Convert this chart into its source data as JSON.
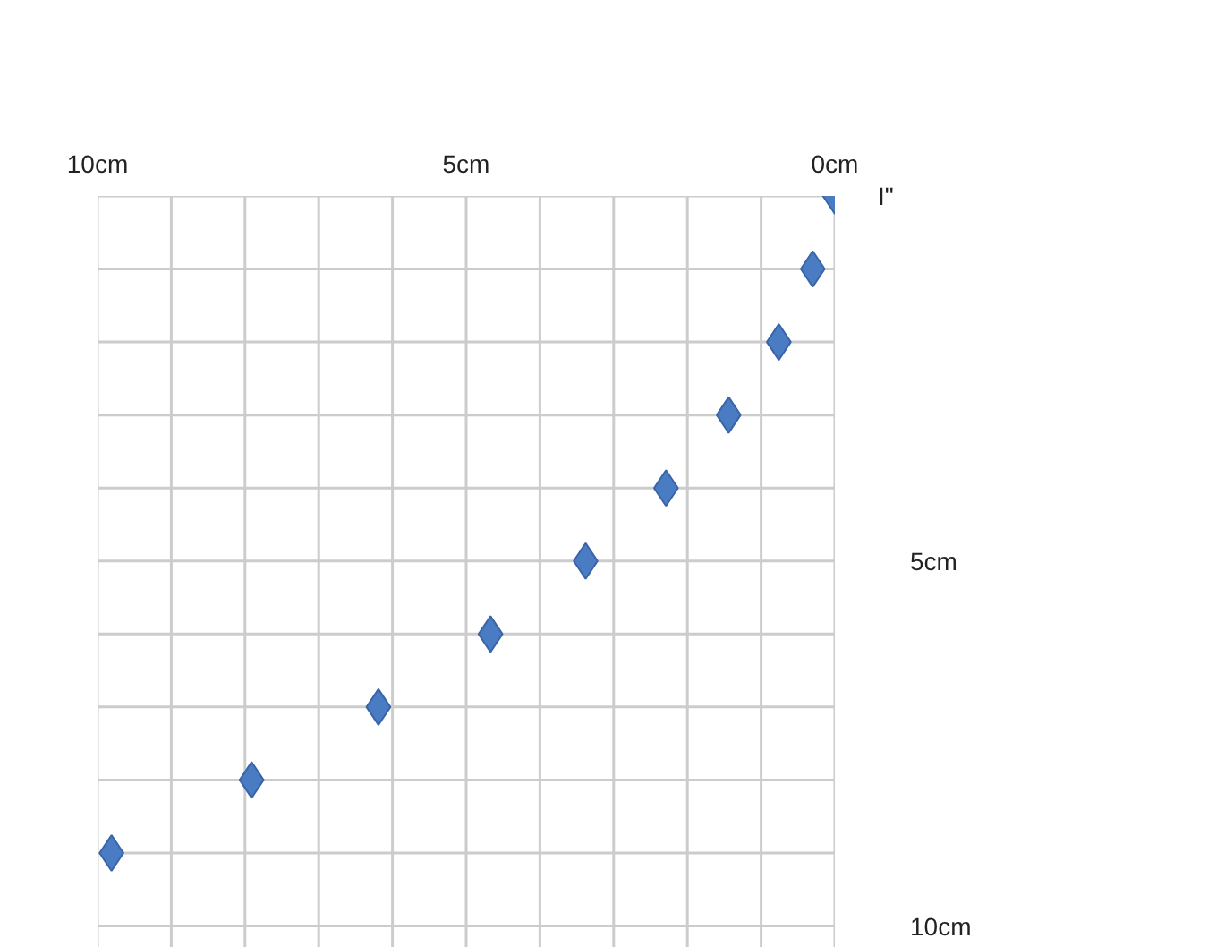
{
  "chart_data": {
    "type": "scatter",
    "x": [
      0,
      0.3,
      0.76,
      1.44,
      2.29,
      3.38,
      4.67,
      6.19,
      7.91,
      9.81
    ],
    "values": [
      0,
      1,
      2,
      3,
      4,
      5,
      6,
      7,
      8,
      9
    ],
    "color": "#4a7cc4",
    "marker": "diamond",
    "xlim": [
      10,
      0
    ],
    "ylim": [
      10.3,
      0
    ],
    "xticks": [
      {
        "value": 10,
        "label": "10cm"
      },
      {
        "value": 9,
        "label": null
      },
      {
        "value": 8,
        "label": null
      },
      {
        "value": 7,
        "label": null
      },
      {
        "value": 6,
        "label": null
      },
      {
        "value": 5,
        "label": "5cm"
      },
      {
        "value": 4,
        "label": null
      },
      {
        "value": 3,
        "label": null
      },
      {
        "value": 2,
        "label": null
      },
      {
        "value": 1,
        "label": null
      },
      {
        "value": 0,
        "label": "0cm"
      }
    ],
    "yticks": [
      {
        "value": 0,
        "label": null
      },
      {
        "value": 1,
        "label": null
      },
      {
        "value": 2,
        "label": null
      },
      {
        "value": 3,
        "label": null
      },
      {
        "value": 4,
        "label": null
      },
      {
        "value": 5,
        "label": "5cm"
      },
      {
        "value": 6,
        "label": null
      },
      {
        "value": 7,
        "label": null
      },
      {
        "value": 8,
        "label": null
      },
      {
        "value": 9,
        "label": null
      },
      {
        "value": 10,
        "label": "10cm"
      }
    ],
    "grid": true,
    "annotations": [
      "I\""
    ]
  }
}
